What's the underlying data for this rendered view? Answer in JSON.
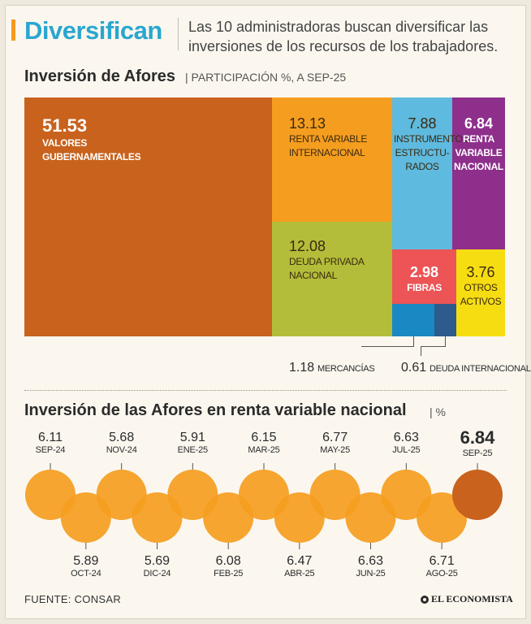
{
  "header": {
    "title": "Diversifican",
    "deck": "Las 10 administradoras buscan diversificar las inversiones de los recursos de los trabajadores."
  },
  "treemap_section": {
    "title": "Inversión de Afores",
    "subtitle": "| PARTICIPACIÓN %, A SEP-25"
  },
  "line_section": {
    "title": "Inversión de las Afores en renta variable nacional",
    "subtitle": "| %"
  },
  "footer": {
    "source": "FUENTE: CONSAR",
    "brand": "EL ECONOMISTA"
  },
  "colors": {
    "gubernamentales": "#c8621d",
    "rv_internacional": "#f59d1f",
    "deuda_privada": "#b3bd3a",
    "estructurados": "#5fbadf",
    "rv_nacional": "#8e2f8c",
    "fibras": "#ec5456",
    "otros": "#f6dd12",
    "mercancias": "#1a88c2",
    "deuda_internacional": "#2d5b8c",
    "bead": "#f59d1f",
    "bead_last": "#c8621d"
  },
  "chart_data": [
    {
      "type": "treemap",
      "title": "Inversión de Afores",
      "unit": "PARTICIPACIÓN %, A SEP-25",
      "items": [
        {
          "key": "gub",
          "value": "51.53",
          "label": "VALORES GUBERNAMENTALES",
          "num": 51.53
        },
        {
          "key": "rvi",
          "value": "13.13",
          "label": "RENTA VARIABLE INTERNACIONAL",
          "num": 13.13
        },
        {
          "key": "dpn",
          "value": "12.08",
          "label": "DEUDA PRIVADA NACIONAL",
          "num": 12.08
        },
        {
          "key": "est",
          "value": "7.88",
          "label": "INSTRUMENTOS ESTRUCTU-RADOS",
          "num": 7.88
        },
        {
          "key": "rvn",
          "value": "6.84",
          "label": "RENTA VARIABLE NACIONAL",
          "num": 6.84
        },
        {
          "key": "fib",
          "value": "2.98",
          "label": "FIBRAS",
          "num": 2.98
        },
        {
          "key": "otr",
          "value": "3.76",
          "label": "OTROS ACTIVOS",
          "num": 3.76
        },
        {
          "key": "mer",
          "value": "1.18",
          "label": "MERCANCÍAS",
          "num": 1.18
        },
        {
          "key": "dit",
          "value": "0.61",
          "label": "DEUDA INTERNACIONAL",
          "num": 0.61
        }
      ]
    },
    {
      "type": "line",
      "title": "Inversión de las Afores en renta variable nacional",
      "ylabel": "%",
      "categories": [
        "SEP-24",
        "OCT-24",
        "NOV-24",
        "DIC-24",
        "ENE-25",
        "FEB-25",
        "MAR-25",
        "ABR-25",
        "MAY-25",
        "JUN-25",
        "JUL-25",
        "AGO-25",
        "SEP-25"
      ],
      "values": [
        6.11,
        5.89,
        5.68,
        5.69,
        5.91,
        6.08,
        6.15,
        6.47,
        6.77,
        6.63,
        6.63,
        6.71,
        6.84
      ],
      "value_labels": [
        "6.11",
        "5.89",
        "5.68",
        "5.69",
        "5.91",
        "6.08",
        "6.15",
        "6.47",
        "6.77",
        "6.63",
        "6.63",
        "6.71",
        "6.84"
      ]
    }
  ]
}
